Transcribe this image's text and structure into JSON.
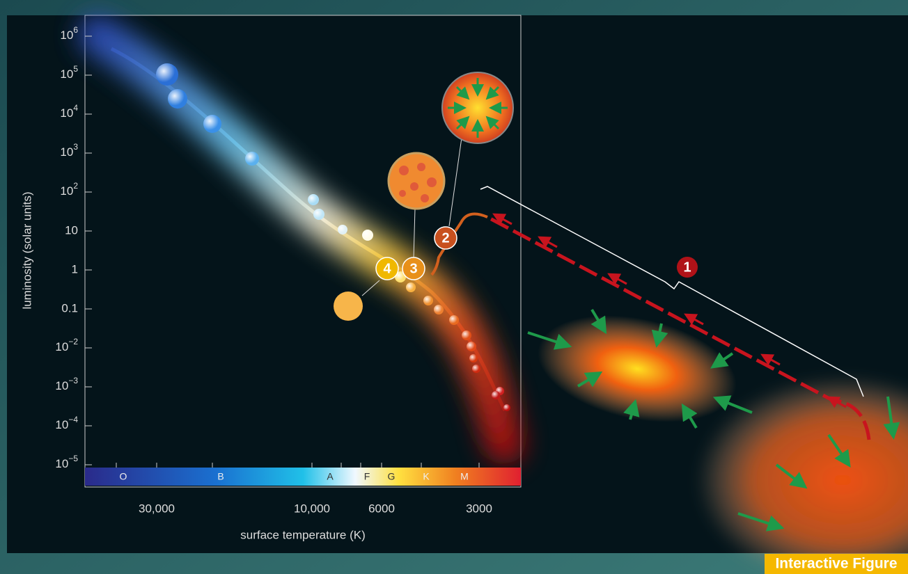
{
  "figure": {
    "y_axis_title": "luminosity (solar units)",
    "x_axis_title": "surface temperature (K)",
    "y_ticks": [
      {
        "base": "10",
        "exponent": "6"
      },
      {
        "base": "10",
        "exponent": "5"
      },
      {
        "base": "10",
        "exponent": "4"
      },
      {
        "base": "10",
        "exponent": "3"
      },
      {
        "base": "10",
        "exponent": "2"
      },
      "10",
      "1",
      "0.1",
      {
        "base": "10",
        "exponent": "−2"
      },
      {
        "base": "10",
        "exponent": "−3"
      },
      {
        "base": "10",
        "exponent": "−4"
      },
      {
        "base": "10",
        "exponent": "−5"
      }
    ],
    "x_ticks": [
      "30,000",
      "10,000",
      "6000",
      "3000"
    ],
    "spectral_classes": [
      "O",
      "B",
      "A",
      "F",
      "G",
      "K",
      "M"
    ],
    "steps": [
      "1",
      "2",
      "3",
      "4"
    ],
    "badge": "Interactive Figure"
  }
}
